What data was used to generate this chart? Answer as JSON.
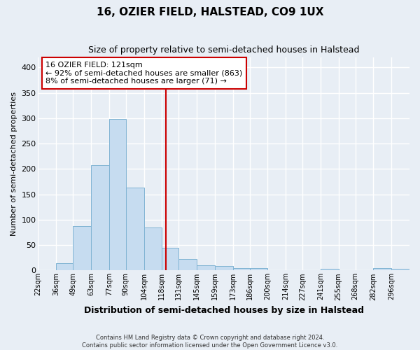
{
  "title": "16, OZIER FIELD, HALSTEAD, CO9 1UX",
  "subtitle": "Size of property relative to semi-detached houses in Halstead",
  "xlabel": "Distribution of semi-detached houses by size in Halstead",
  "ylabel": "Number of semi-detached properties",
  "bin_labels": [
    "22sqm",
    "36sqm",
    "49sqm",
    "63sqm",
    "77sqm",
    "90sqm",
    "104sqm",
    "118sqm",
    "131sqm",
    "145sqm",
    "159sqm",
    "173sqm",
    "186sqm",
    "200sqm",
    "214sqm",
    "227sqm",
    "241sqm",
    "255sqm",
    "268sqm",
    "282sqm",
    "296sqm"
  ],
  "bin_edges": [
    22,
    36,
    49,
    63,
    77,
    90,
    104,
    118,
    131,
    145,
    159,
    173,
    186,
    200,
    214,
    227,
    241,
    255,
    268,
    282,
    296,
    310
  ],
  "bar_heights": [
    0,
    15,
    87,
    208,
    298,
    163,
    85,
    45,
    22,
    10,
    9,
    5,
    4,
    0,
    0,
    0,
    3,
    0,
    0,
    4,
    3
  ],
  "bar_color": "#c6dcf0",
  "bar_edge_color": "#7fb3d3",
  "property_value": 121,
  "vline_color": "#cc0000",
  "ylim": [
    0,
    420
  ],
  "yticks": [
    0,
    50,
    100,
    150,
    200,
    250,
    300,
    350,
    400
  ],
  "annotation_title": "16 OZIER FIELD: 121sqm",
  "annotation_line1": "← 92% of semi-detached houses are smaller (863)",
  "annotation_line2": "8% of semi-detached houses are larger (71) →",
  "annotation_box_color": "#ffffff",
  "annotation_box_edge": "#cc0000",
  "footer_line1": "Contains HM Land Registry data © Crown copyright and database right 2024.",
  "footer_line2": "Contains public sector information licensed under the Open Government Licence v3.0.",
  "background_color": "#e8eef5",
  "grid_color": "#ffffff"
}
